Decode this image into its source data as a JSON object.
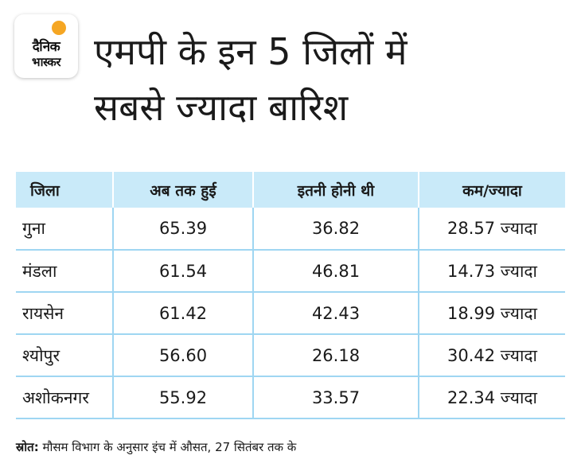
{
  "brand": {
    "line1": "दैनिक",
    "line2": "भास्कर",
    "accent": "#f5a623"
  },
  "headline": {
    "line1": "एमपी के इन 5 जिलों में",
    "line2": "सबसे ज्यादा बारिश"
  },
  "table": {
    "header_color": "#c9eaf9",
    "columns": [
      "जिला",
      "अब तक हुई",
      "इतनी होनी थी",
      "कम/ज्यादा"
    ],
    "rows": [
      {
        "district": "गुना",
        "actual": "65.39",
        "expected": "36.82",
        "diff": "28.57 ज्यादा"
      },
      {
        "district": "मंडला",
        "actual": "61.54",
        "expected": "46.81",
        "diff": "14.73 ज्यादा"
      },
      {
        "district": "रायसेन",
        "actual": "61.42",
        "expected": "42.43",
        "diff": "18.99 ज्यादा"
      },
      {
        "district": "श्योपुर",
        "actual": "56.60",
        "expected": "26.18",
        "diff": "30.42 ज्यादा"
      },
      {
        "district": "अशोकनगर",
        "actual": "55.92",
        "expected": "33.57",
        "diff": "22.34 ज्यादा"
      }
    ]
  },
  "source": {
    "label": "स्रोत:",
    "text": " मौसम विभाग के अनुसार इंच में औसत, 27 सितंबर तक के"
  }
}
